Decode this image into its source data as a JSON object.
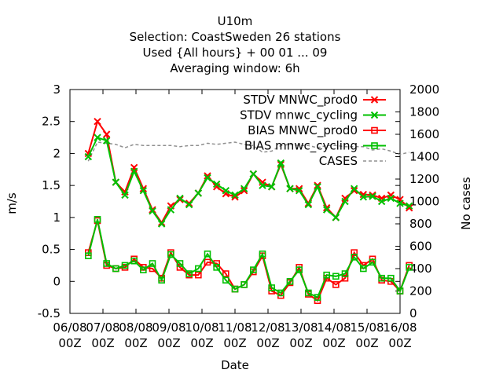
{
  "chart_data": {
    "type": "line",
    "title_lines": [
      "U10m",
      "Selection: CoastSweden     26 stations",
      "Used {All hours} + 00 01 ... 09",
      "Averaging window:  6h"
    ],
    "xlabel": "Date",
    "ylabel": "m/s",
    "y2label": "No cases",
    "ylim": [
      -0.5,
      3
    ],
    "y2lim": [
      0,
      2000
    ],
    "xlim": [
      0,
      9
    ],
    "x_units": "days since 06/08 00Z",
    "yticks": [
      "-0.5",
      "0",
      "0.5",
      "1",
      "1.5",
      "2",
      "2.5",
      "3"
    ],
    "y2ticks": [
      "0",
      "200",
      "400",
      "600",
      "800",
      "1000",
      "1200",
      "1400",
      "1600",
      "1800",
      "2000"
    ],
    "xticks": [
      {
        "date": "06/08",
        "hour": "00Z"
      },
      {
        "date": "07/08",
        "hour": "00Z"
      },
      {
        "date": "08/08",
        "hour": "00Z"
      },
      {
        "date": "09/08",
        "hour": "00Z"
      },
      {
        "date": "10/08",
        "hour": "00Z"
      },
      {
        "date": "11/08",
        "hour": "00Z"
      },
      {
        "date": "12/08",
        "hour": "00Z"
      },
      {
        "date": "13/08",
        "hour": "00Z"
      },
      {
        "date": "14/08",
        "hour": "00Z"
      },
      {
        "date": "15/08",
        "hour": "00Z"
      },
      {
        "date": "16/08",
        "hour": "00Z"
      }
    ],
    "x": [
      0.5,
      0.75,
      1.0,
      1.25,
      1.5,
      1.75,
      2.0,
      2.25,
      2.5,
      2.75,
      3.0,
      3.25,
      3.5,
      3.75,
      4.0,
      4.25,
      4.5,
      4.75,
      5.0,
      5.25,
      5.5,
      5.75,
      6.0,
      6.25,
      6.5,
      6.75,
      7.0,
      7.25,
      7.5,
      7.75,
      8.0,
      8.25,
      8.5,
      8.75,
      9.0,
      9.25
    ],
    "legend_position": "top-right",
    "grid": false,
    "series": [
      {
        "name": "STDV MNWC_prod0",
        "color": "#ff0000",
        "marker": "x",
        "axis": "y",
        "values": [
          2.0,
          2.5,
          2.3,
          1.55,
          1.4,
          1.78,
          1.45,
          1.12,
          0.92,
          1.18,
          1.28,
          1.22,
          1.38,
          1.65,
          1.48,
          1.37,
          1.32,
          1.42,
          1.68,
          1.55,
          1.48,
          1.83,
          1.45,
          1.45,
          1.22,
          1.5,
          1.15,
          1.0,
          1.3,
          1.42,
          1.36,
          1.35,
          1.3,
          1.35,
          1.28,
          1.15
        ]
      },
      {
        "name": "STDV mnwc_cycling",
        "color": "#00c000",
        "marker": "x",
        "axis": "y",
        "values": [
          1.95,
          2.25,
          2.2,
          1.55,
          1.35,
          1.72,
          1.42,
          1.1,
          0.9,
          1.12,
          1.3,
          1.2,
          1.38,
          1.62,
          1.52,
          1.42,
          1.35,
          1.45,
          1.68,
          1.5,
          1.48,
          1.85,
          1.45,
          1.42,
          1.2,
          1.48,
          1.12,
          1.0,
          1.25,
          1.45,
          1.32,
          1.33,
          1.25,
          1.3,
          1.22,
          1.18
        ]
      },
      {
        "name": "BIAS MNWC_prod0",
        "color": "#ff0000",
        "marker": "square",
        "axis": "y",
        "values": [
          0.45,
          0.95,
          0.25,
          0.2,
          0.22,
          0.35,
          0.22,
          0.2,
          0.05,
          0.45,
          0.22,
          0.1,
          0.1,
          0.3,
          0.28,
          0.12,
          -0.12,
          -0.05,
          0.15,
          0.4,
          -0.15,
          -0.22,
          -0.02,
          0.22,
          -0.2,
          -0.3,
          0.05,
          -0.05,
          0.05,
          0.45,
          0.25,
          0.35,
          0.02,
          0.0,
          -0.15,
          0.25
        ]
      },
      {
        "name": "BIAS mnwc_cycling",
        "color": "#00c000",
        "marker": "square",
        "axis": "y",
        "values": [
          0.4,
          0.97,
          0.28,
          0.2,
          0.25,
          0.32,
          0.18,
          0.28,
          0.02,
          0.42,
          0.28,
          0.12,
          0.2,
          0.43,
          0.22,
          0.02,
          -0.12,
          -0.05,
          0.18,
          0.43,
          -0.1,
          -0.18,
          0.0,
          0.18,
          -0.18,
          -0.25,
          0.1,
          0.08,
          0.12,
          0.38,
          0.2,
          0.3,
          0.05,
          0.05,
          -0.15,
          0.22
        ]
      },
      {
        "name": "CASES",
        "color": "#909090",
        "marker": "none",
        "dash": true,
        "axis": "y2",
        "values": [
          1360,
          1530,
          1520,
          1510,
          1480,
          1510,
          1500,
          1500,
          1500,
          1500,
          1490,
          1500,
          1500,
          1520,
          1510,
          1520,
          1530,
          1510,
          1500,
          1440,
          1450,
          1500,
          1510,
          1500,
          1500,
          1480,
          1500,
          1500,
          1490,
          1490,
          1490,
          1460,
          1470,
          1450,
          1420,
          1440
        ]
      }
    ]
  }
}
